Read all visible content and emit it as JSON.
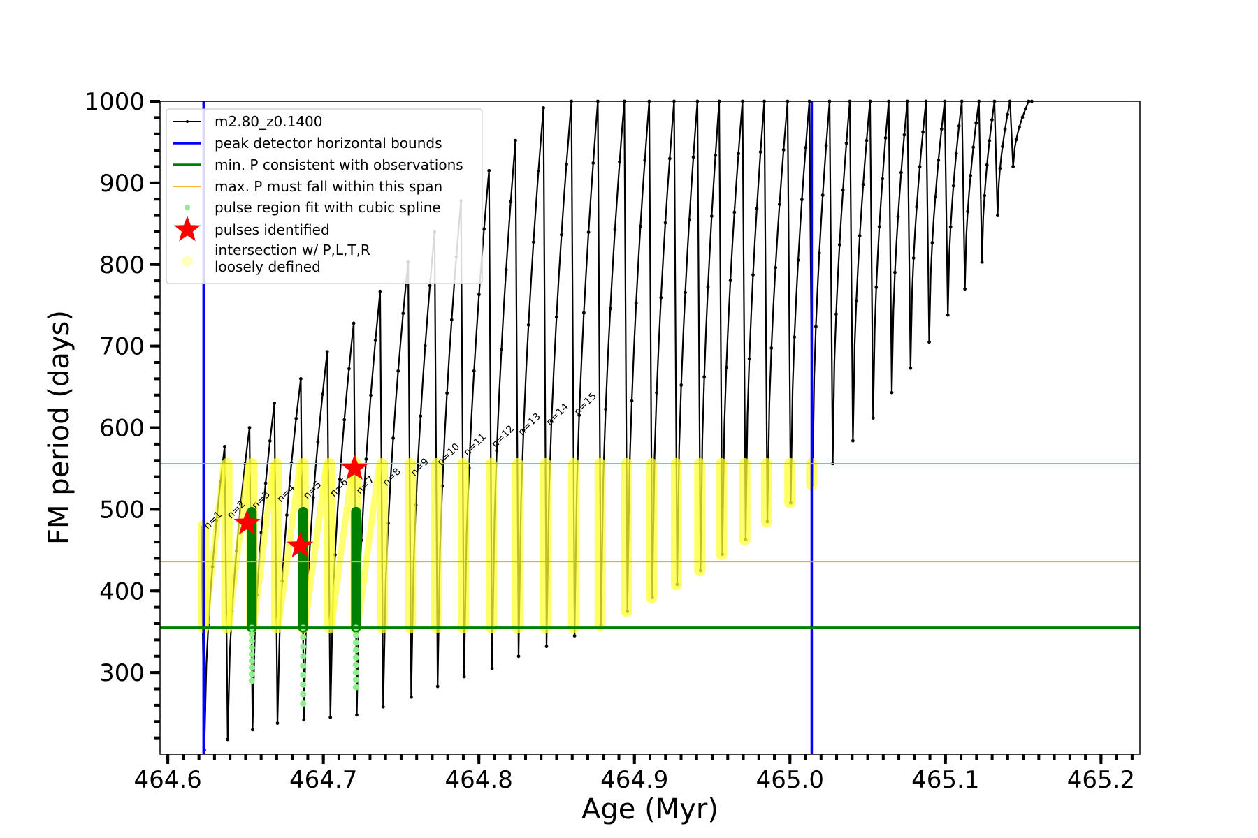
{
  "chart_data": {
    "type": "line",
    "xlabel": "Age (Myr)",
    "ylabel": "FM period (days)",
    "xlim": [
      464.595,
      465.225
    ],
    "ylim": [
      200,
      1000
    ],
    "xticks": [
      {
        "value": 464.6,
        "label": "464.6"
      },
      {
        "value": 464.7,
        "label": "464.7"
      },
      {
        "value": 464.8,
        "label": "464.8"
      },
      {
        "value": 464.9,
        "label": "464.9"
      },
      {
        "value": 465.0,
        "label": "465.0"
      },
      {
        "value": 465.1,
        "label": "465.1"
      },
      {
        "value": 465.2,
        "label": "465.2"
      }
    ],
    "yticks": [
      {
        "value": 300,
        "label": "300"
      },
      {
        "value": 400,
        "label": "400"
      },
      {
        "value": 500,
        "label": "500"
      },
      {
        "value": 600,
        "label": "600"
      },
      {
        "value": 700,
        "label": "700"
      },
      {
        "value": 800,
        "label": "800"
      },
      {
        "value": 900,
        "label": "900"
      },
      {
        "value": 1000,
        "label": "1000"
      }
    ],
    "x_minor_step": 0.01,
    "y_minor_step": 20,
    "legend_position": "top-left",
    "legend": [
      {
        "label": "m2.80_z0.1400",
        "marker": "line-dot",
        "color": "#000000"
      },
      {
        "label": "peak detector horizontal bounds",
        "marker": "line",
        "color": "#0000ff"
      },
      {
        "label": "min. P consistent with observations",
        "marker": "line",
        "color": "#008000"
      },
      {
        "label": "max. P must fall within this span",
        "marker": "thin-line",
        "color": "#ffa500"
      },
      {
        "label": "pulse region fit with cubic spline",
        "marker": "dot",
        "color": "#90ee90"
      },
      {
        "label": "pulses identified",
        "marker": "star",
        "color": "#ff0000"
      },
      {
        "label": "intersection w/ P,L,T,R\nloosely defined",
        "marker": "circle",
        "color": "#ffffc0"
      }
    ],
    "reference_lines": {
      "peak_detector_bounds_x": [
        464.623,
        465.014
      ],
      "min_period_y": 355,
      "max_period_span_y": [
        436,
        556
      ]
    },
    "pulses": [
      {
        "n": "n=1",
        "age": 464.623,
        "peak": 480,
        "min": 205
      },
      {
        "n": "n=2",
        "age": 464.638,
        "peak": 577,
        "min": 218
      },
      {
        "n": "n=3",
        "age": 464.654,
        "peak": 600,
        "min": 230
      },
      {
        "n": "n=4",
        "age": 464.67,
        "peak": 630,
        "min": 238
      },
      {
        "n": "n=5",
        "age": 464.687,
        "peak": 660,
        "min": 242
      },
      {
        "n": "n=6",
        "age": 464.704,
        "peak": 693,
        "min": 245
      },
      {
        "n": "n=7",
        "age": 464.721,
        "peak": 728,
        "min": 248
      },
      {
        "n": "n=8",
        "age": 464.738,
        "peak": 767,
        "min": 258
      },
      {
        "n": "n=9",
        "age": 464.756,
        "peak": 803,
        "min": 270
      },
      {
        "n": "n=10",
        "age": 464.773,
        "peak": 840,
        "min": 283
      },
      {
        "n": "n=11",
        "age": 464.79,
        "peak": 878,
        "min": 295
      },
      {
        "n": "n=12",
        "age": 464.808,
        "peak": 915,
        "min": 305
      },
      {
        "n": "n=13",
        "age": 464.825,
        "peak": 952,
        "min": 320
      },
      {
        "n": "n=14",
        "age": 464.843,
        "peak": 992,
        "min": 332
      },
      {
        "n": "n=15",
        "age": 464.861,
        "peak": 1000,
        "min": 345
      },
      {
        "n": "",
        "age": 464.878,
        "peak": 1000,
        "min": 358
      },
      {
        "n": "",
        "age": 464.895,
        "peak": 1000,
        "min": 375
      },
      {
        "n": "",
        "age": 464.911,
        "peak": 1000,
        "min": 392
      },
      {
        "n": "",
        "age": 464.927,
        "peak": 1000,
        "min": 408
      },
      {
        "n": "",
        "age": 464.942,
        "peak": 1000,
        "min": 425
      },
      {
        "n": "",
        "age": 464.956,
        "peak": 1000,
        "min": 445
      },
      {
        "n": "",
        "age": 464.971,
        "peak": 1000,
        "min": 463
      },
      {
        "n": "",
        "age": 464.985,
        "peak": 1000,
        "min": 485
      },
      {
        "n": "",
        "age": 465.0,
        "peak": 1000,
        "min": 508
      },
      {
        "n": "",
        "age": 465.014,
        "peak": 1000,
        "min": 530
      },
      {
        "n": "",
        "age": 465.027,
        "peak": 1000,
        "min": 556
      },
      {
        "n": "",
        "age": 465.04,
        "peak": 1000,
        "min": 584
      },
      {
        "n": "",
        "age": 465.053,
        "peak": 1000,
        "min": 612
      },
      {
        "n": "",
        "age": 465.065,
        "peak": 1000,
        "min": 643
      },
      {
        "n": "",
        "age": 465.077,
        "peak": 1000,
        "min": 673
      },
      {
        "n": "",
        "age": 465.089,
        "peak": 1000,
        "min": 705
      },
      {
        "n": "",
        "age": 465.101,
        "peak": 1000,
        "min": 738
      },
      {
        "n": "",
        "age": 465.112,
        "peak": 1000,
        "min": 770
      },
      {
        "n": "",
        "age": 465.123,
        "peak": 1000,
        "min": 803
      },
      {
        "n": "",
        "age": 465.133,
        "peak": 1000,
        "min": 860
      },
      {
        "n": "",
        "age": 465.143,
        "peak": 1000,
        "min": 920
      },
      {
        "n": "",
        "age": 465.155,
        "peak": 1000,
        "min": 1000
      }
    ],
    "identified_pulses": [
      {
        "age": 464.651,
        "period": 483
      },
      {
        "age": 464.685,
        "period": 455
      },
      {
        "age": 464.72,
        "period": 550
      }
    ],
    "spline_fit_regions": [
      {
        "age": 464.654,
        "top": 497,
        "bottom": 290
      },
      {
        "age": 464.687,
        "top": 497,
        "bottom": 262
      },
      {
        "age": 464.721,
        "top": 497,
        "bottom": 282
      }
    ]
  }
}
